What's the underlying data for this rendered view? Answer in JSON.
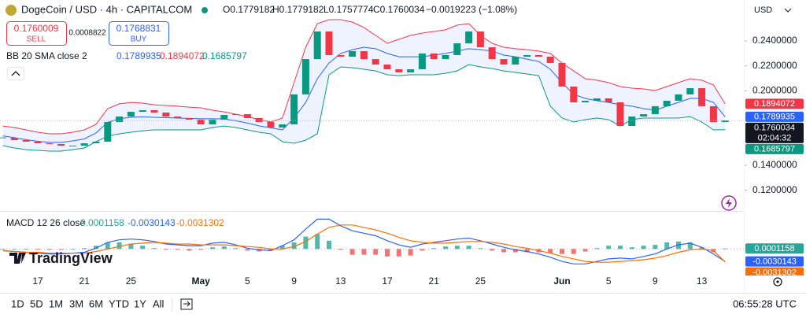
{
  "header": {
    "symbol": "DogeCoin / USD · 4h · CAPITALCOM",
    "ohlc": [
      "O0.1779182",
      "H0.1779182",
      "L0.1757774",
      "C0.1760034",
      "−0.0019223 (−1.08%)"
    ],
    "sell": {
      "price": "0.1760009",
      "label": "SELL"
    },
    "spread": "0.0008822",
    "buy": {
      "price": "0.1768831",
      "label": "BUY"
    },
    "currency": "USD"
  },
  "toolbar": {
    "ranges": [
      "1D",
      "5D",
      "1M",
      "3M",
      "6M",
      "YTD",
      "1Y",
      "All"
    ],
    "clock": "06:55:28 UTC"
  },
  "brand": "TradingView",
  "chart_data": [
    {
      "type": "candlestick",
      "categories": [
        null,
        null,
        null,
        "17",
        null,
        null,
        null,
        "21",
        null,
        null,
        null,
        "25",
        null,
        null,
        null,
        null,
        null,
        "May",
        null,
        null,
        null,
        "5",
        null,
        null,
        null,
        "9",
        null,
        null,
        null,
        "13",
        null,
        null,
        null,
        "17",
        null,
        null,
        null,
        "21",
        null,
        null,
        null,
        "25",
        null,
        null,
        null,
        null,
        null,
        null,
        "Jun",
        null,
        null,
        null,
        "5",
        null,
        null,
        null,
        "9",
        null,
        null,
        null,
        "13",
        null,
        null
      ],
      "close": [
        0.1621,
        0.1602,
        0.159,
        0.1577,
        0.1571,
        0.1558,
        0.1558,
        0.1577,
        0.159,
        0.1748,
        0.1792,
        0.183,
        0.1843,
        0.1824,
        0.1792,
        0.178,
        0.1767,
        0.1729,
        0.1767,
        0.1805,
        0.1811,
        0.178,
        0.1748,
        0.1704,
        0.1729,
        0.197,
        0.2254,
        0.2476,
        0.2286,
        0.2273,
        0.2318,
        0.2254,
        0.221,
        0.2172,
        0.2147,
        0.2172,
        0.2299,
        0.2254,
        0.2286,
        0.2381,
        0.2476,
        0.2349,
        0.2254,
        0.221,
        0.2273,
        0.2286,
        0.2273,
        0.2223,
        0.2033,
        0.1906,
        0.1919,
        0.1938,
        0.1906,
        0.1716,
        0.1792,
        0.1811,
        0.1875,
        0.1919,
        0.197,
        0.202,
        0.1875,
        0.1748,
        0.1760034
      ],
      "up_color": "#089981",
      "down_color": "#f23645",
      "countdown": "02:04:32",
      "bands": {
        "label": "BB 20 SMA close 2",
        "fill": "#2962ff",
        "middle": {
          "color": "#2962ff",
          "values": [
            0.1637,
            0.1622,
            0.1606,
            0.1593,
            0.1584,
            0.1584,
            0.1596,
            0.1612,
            0.166,
            0.1745,
            0.1774,
            0.1786,
            0.1789,
            0.1786,
            0.1783,
            0.178,
            0.1777,
            0.1774,
            0.1774,
            0.1773,
            0.1758,
            0.1739,
            0.1717,
            0.1701,
            0.1685,
            0.178,
            0.1906,
            0.2096,
            0.2223,
            0.2299,
            0.233,
            0.2349,
            0.2337,
            0.2299,
            0.2273,
            0.2273,
            0.2273,
            0.2286,
            0.2299,
            0.2318,
            0.2337,
            0.233,
            0.2318,
            0.2286,
            0.2273,
            0.2254,
            0.2235,
            0.2172,
            0.2065,
            0.197,
            0.1938,
            0.1919,
            0.1906,
            0.1887,
            0.1875,
            0.1856,
            0.1843,
            0.1875,
            0.1906,
            0.1938,
            0.1938,
            0.1906,
            0.1789935
          ]
        },
        "upper": {
          "color": "#f23645",
          "values": [
            0.1716,
            0.1704,
            0.1685,
            0.1666,
            0.1653,
            0.1653,
            0.1666,
            0.1685,
            0.1729,
            0.1856,
            0.1894,
            0.1906,
            0.19,
            0.1887,
            0.1881,
            0.1875,
            0.1868,
            0.1862,
            0.1843,
            0.183,
            0.1811,
            0.1792,
            0.1767,
            0.1748,
            0.178,
            0.2065,
            0.2349,
            0.2539,
            0.2571,
            0.2571,
            0.2552,
            0.2508,
            0.2444,
            0.2381,
            0.2413,
            0.2444,
            0.2463,
            0.2476,
            0.2489,
            0.2527,
            0.2539,
            0.2444,
            0.2381,
            0.2349,
            0.2337,
            0.233,
            0.2318,
            0.2299,
            0.2223,
            0.2159,
            0.2096,
            0.2084,
            0.2065,
            0.2033,
            0.202,
            0.2014,
            0.2001,
            0.2033,
            0.2065,
            0.2096,
            0.2084,
            0.2046,
            0.1894072
          ]
        },
        "lower": {
          "color": "#089981",
          "values": [
            0.1558,
            0.1539,
            0.1526,
            0.152,
            0.1514,
            0.1514,
            0.1526,
            0.1539,
            0.159,
            0.1634,
            0.1653,
            0.1666,
            0.1678,
            0.1685,
            0.1685,
            0.1685,
            0.1685,
            0.1685,
            0.1704,
            0.1716,
            0.1704,
            0.1685,
            0.1666,
            0.1653,
            0.159,
            0.1577,
            0.1602,
            0.1653,
            0.2128,
            0.2191,
            0.2185,
            0.2172,
            0.2159,
            0.2128,
            0.2121,
            0.2128,
            0.2128,
            0.2128,
            0.214,
            0.2159,
            0.221,
            0.2191,
            0.2178,
            0.2159,
            0.2147,
            0.2134,
            0.2121,
            0.1875,
            0.178,
            0.1748,
            0.1767,
            0.178,
            0.1767,
            0.1716,
            0.1767,
            0.178,
            0.178,
            0.178,
            0.178,
            0.1792,
            0.1748,
            0.1685,
            0.1685797
          ]
        }
      },
      "ylim": [
        0.1052,
        0.2729
      ],
      "yticks": [
        {
          "value": 0.24,
          "label": "0.2400000"
        },
        {
          "value": 0.22,
          "label": "0.2200000"
        },
        {
          "value": 0.2,
          "label": "0.2000000"
        },
        {
          "value": 0.14,
          "label": "0.1400000"
        },
        {
          "value": 0.12,
          "label": "0.1200000"
        }
      ],
      "grid": false
    },
    {
      "type": "macd",
      "label": "MACD 12 26 close",
      "ylim": [
        -0.0064,
        0.0088
      ],
      "histogram": {
        "up_color": "#26a69a",
        "down_color": "#ef5350",
        "values": [
          0,
          0,
          0,
          -0.0002,
          -0.0002,
          -0.0002,
          0,
          0.0002,
          0.0008,
          0.0016,
          0.0016,
          0.0012,
          0.0008,
          0.0002,
          -0.0002,
          -0.0002,
          -0.0004,
          -0.0002,
          0.0004,
          0.0006,
          0.0002,
          -0.0004,
          -0.0006,
          -0.0004,
          0.0008,
          0.0016,
          0.003,
          0.0036,
          0.002,
          -0.0002,
          -0.0014,
          -0.0014,
          -0.0014,
          -0.0018,
          -0.0018,
          -0.0016,
          -0.0004,
          0.0002,
          0.0006,
          0.0008,
          0.0008,
          0.0002,
          -0.0004,
          -0.0008,
          -0.0008,
          -0.0008,
          -0.0008,
          -0.001,
          -0.0012,
          -0.0012,
          -0.0006,
          0.0002,
          0.0008,
          0.0008,
          0.0004,
          0.0008,
          0.001,
          0.0016,
          0.0018,
          0.0016,
          0.0004,
          -0.0008,
          0.0001158
        ]
      },
      "macd": {
        "color": "#2962ff",
        "values": [
          -0.0004,
          -0.0006,
          -0.0008,
          -0.001,
          -0.0012,
          -0.0012,
          -0.001,
          -0.0008,
          0.0002,
          0.0016,
          0.0022,
          0.0024,
          0.0022,
          0.0018,
          0.0012,
          0.001,
          0.0008,
          0.0008,
          0.0014,
          0.0016,
          0.001,
          0.0002,
          -0.0002,
          -0.0004,
          0.0008,
          0.0022,
          0.0048,
          0.0072,
          0.0072,
          0.0056,
          0.0044,
          0.0038,
          0.0032,
          0.002,
          0.001,
          0.0004,
          0.0012,
          0.0016,
          0.002,
          0.0024,
          0.0026,
          0.002,
          0.0012,
          0.0004,
          -0.0002,
          -0.0006,
          -0.0012,
          -0.002,
          -0.003,
          -0.0036,
          -0.0036,
          -0.003,
          -0.0024,
          -0.0022,
          -0.0024,
          -0.0018,
          -0.0012,
          0,
          0.001,
          0.0014,
          0.0004,
          -0.0012,
          -0.0030143
        ]
      },
      "signal": {
        "color": "#ff6d00",
        "values": [
          -0.0004,
          -0.0006,
          -0.0008,
          -0.0008,
          -0.001,
          -0.001,
          -0.001,
          -0.001,
          -0.0006,
          0,
          0.0006,
          0.0012,
          0.0014,
          0.0016,
          0.0014,
          0.0012,
          0.0012,
          0.001,
          0.001,
          0.001,
          0.0008,
          0.0006,
          0.0004,
          0,
          0,
          0.0006,
          0.0018,
          0.0036,
          0.0052,
          0.0058,
          0.0058,
          0.0052,
          0.0046,
          0.0038,
          0.0028,
          0.002,
          0.0016,
          0.0014,
          0.0014,
          0.0016,
          0.0018,
          0.0018,
          0.0016,
          0.0012,
          0.0006,
          0.0002,
          -0.0004,
          -0.001,
          -0.0018,
          -0.0024,
          -0.003,
          -0.0032,
          -0.0032,
          -0.003,
          -0.0028,
          -0.0026,
          -0.0022,
          -0.0016,
          -0.0008,
          -0.0002,
          0,
          -0.0004,
          -0.0031302
        ]
      }
    }
  ]
}
